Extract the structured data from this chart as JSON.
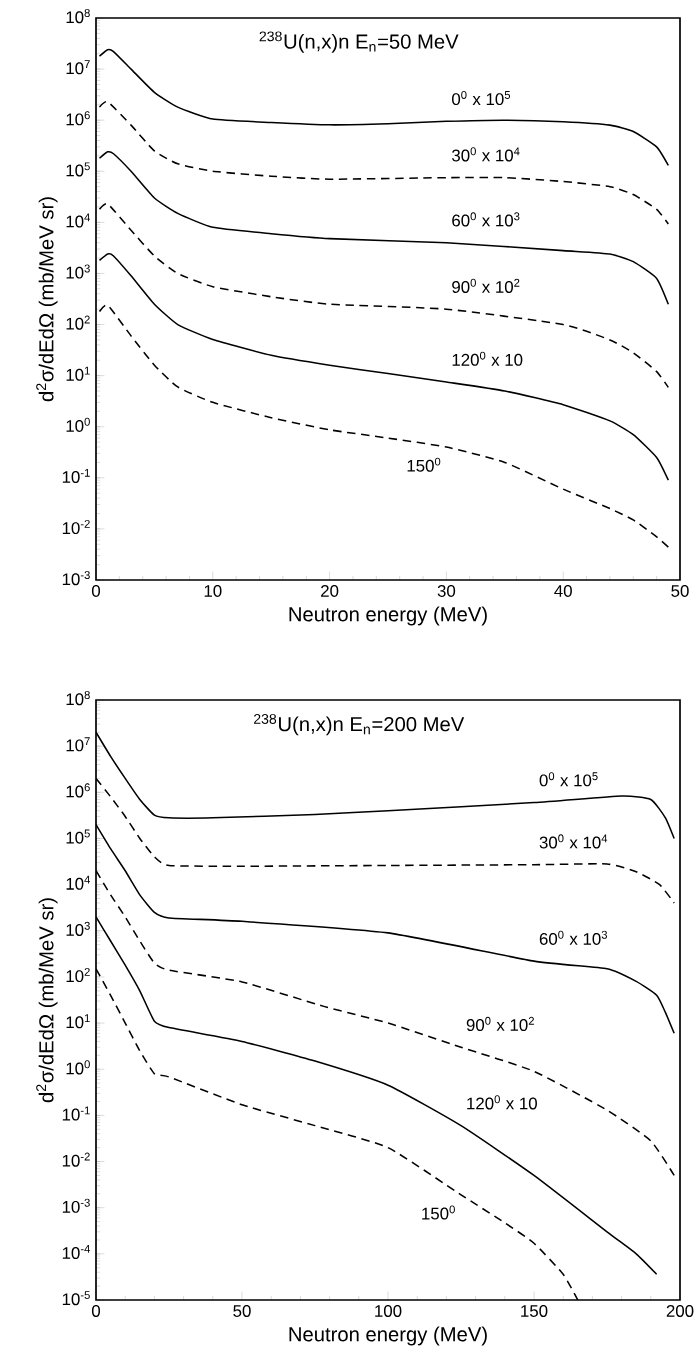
{
  "chart_data": [
    {
      "type": "line",
      "title": "$^{238}$U(n,x)n  E$_{n}$=50 MeV",
      "xlabel": "Neutron energy (MeV)",
      "ylabel": "d$^{2}$σ/dEdΩ (mb/MeV sr)",
      "log": "y",
      "xlim": [
        0,
        50
      ],
      "ylim": [
        0.001,
        100000000
      ],
      "xticks": [
        0,
        10,
        20,
        30,
        40,
        50
      ],
      "yticks": [
        {
          "value": 0.001,
          "label": "10$^{-3}$"
        },
        {
          "value": 0.01,
          "label": "10$^{-2}$"
        },
        {
          "value": 0.1,
          "label": "10$^{-1}$"
        },
        {
          "value": 1,
          "label": "10$^{0}$"
        },
        {
          "value": 10,
          "label": "10$^{1}$"
        },
        {
          "value": 100,
          "label": "10$^{2}$"
        },
        {
          "value": 1000,
          "label": "10$^{3}$"
        },
        {
          "value": 10000,
          "label": "10$^{4}$"
        },
        {
          "value": 100000,
          "label": "10$^{5}$"
        },
        {
          "value": 1000000,
          "label": "10$^{6}$"
        },
        {
          "value": 10000000,
          "label": "10$^{7}$"
        },
        {
          "value": 100000000,
          "label": "10$^{8}$"
        }
      ],
      "series": [
        {
          "name": "0$^{0}$  x 10$^{5}$",
          "color": "#000000",
          "line_style": "solid",
          "x": [
            0.3,
            1,
            1.5,
            3,
            5,
            7,
            10,
            15,
            20,
            25,
            30,
            35,
            40,
            44,
            46,
            48,
            49
          ],
          "values": [
            18000000,
            24000000,
            22000000,
            10000000,
            3500000,
            1800000,
            1050000,
            900000,
            810000,
            850000,
            950000,
            1000000,
            930000,
            800000,
            600000,
            300000,
            130000
          ]
        },
        {
          "name": "30$^{0}$  x 10$^{4}$",
          "color": "#000000",
          "line_style": "dashed",
          "x": [
            0.3,
            1,
            3,
            5,
            7,
            10,
            15,
            20,
            30,
            35,
            40,
            44,
            46,
            48,
            49
          ],
          "values": [
            1800000,
            2300000,
            800000,
            250000,
            140000,
            100000,
            80000,
            70000,
            75000,
            75000,
            63000,
            50000,
            35000,
            18000,
            9300
          ]
        },
        {
          "name": "60$^{0}$  x 10$^{3}$",
          "color": "#000000",
          "line_style": "solid",
          "x": [
            0.3,
            1,
            1.5,
            3,
            5,
            7,
            10,
            15,
            20,
            30,
            40,
            44,
            46,
            48,
            49
          ],
          "values": [
            180000,
            240000,
            220000,
            100000,
            30000,
            15000,
            8000,
            6000,
            4800,
            4000,
            2800,
            2400,
            1700,
            800,
            250
          ]
        },
        {
          "name": "90$^{0}$  x 10$^{2}$",
          "color": "#000000",
          "line_style": "dashed",
          "x": [
            0.3,
            1,
            3,
            5,
            7,
            10,
            15,
            20,
            30,
            40,
            44,
            46,
            48,
            49
          ],
          "values": [
            18000,
            23000,
            7000,
            2200,
            1000,
            550,
            350,
            250,
            200,
            100,
            50,
            28,
            12,
            5.9
          ]
        },
        {
          "name": "120$^{0}$  x 10",
          "color": "#000000",
          "line_style": "solid",
          "x": [
            0.3,
            1,
            1.5,
            3,
            5,
            7,
            10,
            15,
            20,
            25,
            30,
            35,
            40,
            44,
            46,
            48,
            49
          ],
          "values": [
            1800,
            2400,
            2200,
            900,
            250,
            100,
            51,
            25,
            16,
            11,
            7.5,
            5,
            2.7,
            1.3,
            0.7,
            0.25,
            0.09
          ]
        },
        {
          "name": "150$^{0}$",
          "color": "#000000",
          "line_style": "dashed",
          "x": [
            0.3,
            1,
            3,
            5,
            7,
            10,
            15,
            20,
            25,
            30,
            35,
            40,
            44,
            46,
            48,
            49
          ],
          "values": [
            180,
            240,
            60,
            16,
            6,
            3,
            1.5,
            0.87,
            0.6,
            0.4,
            0.2,
            0.06,
            0.025,
            0.015,
            0.007,
            0.0044
          ]
        }
      ]
    },
    {
      "type": "line",
      "title": "$^{238}$U(n,x)n     E$_{n}$=200 MeV",
      "xlabel": "Neutron energy (MeV)",
      "ylabel": "d$^{2}$σ/dEdΩ (mb/MeV sr)",
      "log": "y",
      "xlim": [
        0,
        200
      ],
      "ylim": [
        1e-05,
        100000000
      ],
      "xticks": [
        0,
        50,
        100,
        150,
        200
      ],
      "yticks": [
        {
          "value": 1e-05,
          "label": "10$^{-5}$"
        },
        {
          "value": 0.0001,
          "label": "10$^{-4}$"
        },
        {
          "value": 0.001,
          "label": "10$^{-3}$"
        },
        {
          "value": 0.01,
          "label": "10$^{-2}$"
        },
        {
          "value": 0.1,
          "label": "10$^{-1}$"
        },
        {
          "value": 1,
          "label": "10$^{0}$"
        },
        {
          "value": 10,
          "label": "10$^{1}$"
        },
        {
          "value": 100,
          "label": "10$^{2}$"
        },
        {
          "value": 1000,
          "label": "10$^{3}$"
        },
        {
          "value": 10000,
          "label": "10$^{4}$"
        },
        {
          "value": 100000,
          "label": "10$^{5}$"
        },
        {
          "value": 1000000,
          "label": "10$^{6}$"
        },
        {
          "value": 10000000,
          "label": "10$^{7}$"
        },
        {
          "value": 100000000,
          "label": "10$^{8}$"
        }
      ],
      "series": [
        {
          "name": "0$^{0}$  x 10$^{5}$",
          "color": "#000000",
          "line_style": "solid",
          "x": [
            0,
            5,
            10,
            15,
            20,
            25,
            40,
            75,
            100,
            150,
            180,
            190,
            195,
            198
          ],
          "values": [
            20000000,
            6000000,
            2000000,
            700000,
            320000,
            280000,
            280000,
            330000,
            400000,
            600000,
            830000,
            700000,
            280000,
            100000
          ]
        },
        {
          "name": "30$^{0}$  x 10$^{4}$",
          "color": "#000000",
          "line_style": "dashed",
          "x": [
            0,
            5,
            10,
            15,
            20,
            25,
            50,
            100,
            150,
            175,
            185,
            193,
            198
          ],
          "values": [
            2000000,
            800000,
            300000,
            100000,
            40000,
            26000,
            25000,
            26000,
            27000,
            28000,
            19000,
            10000,
            4000
          ]
        },
        {
          "name": "60$^{0}$  x 10$^{3}$",
          "color": "#000000",
          "line_style": "solid",
          "x": [
            0,
            5,
            10,
            15,
            20,
            25,
            50,
            100,
            150,
            175,
            185,
            192,
            195,
            198
          ],
          "values": [
            200000,
            60000,
            20000,
            6000,
            2500,
            1900,
            1600,
            900,
            220,
            150,
            80,
            40,
            17,
            6
          ]
        },
        {
          "name": "90$^{0}$  x 10$^{2}$",
          "color": "#000000",
          "line_style": "dashed",
          "x": [
            0,
            5,
            10,
            15,
            20,
            25,
            50,
            78,
            100,
            125,
            150,
            175,
            190,
            198
          ],
          "values": [
            20000,
            6000,
            2000,
            600,
            200,
            140,
            78,
            23,
            10,
            3,
            0.9,
            0.13,
            0.028,
            0.005
          ]
        },
        {
          "name": "120$^{0}$  x 10",
          "color": "#000000",
          "line_style": "solid",
          "x": [
            0,
            5,
            10,
            15,
            20,
            25,
            50,
            75,
            100,
            125,
            150,
            175,
            185,
            192
          ],
          "values": [
            2000,
            600,
            180,
            50,
            11,
            8,
            4,
            1.5,
            0.45,
            0.06,
            0.005,
            0.0003,
            0.0001,
            3.6e-05
          ]
        },
        {
          "name": "150$^{0}$",
          "color": "#000000",
          "line_style": "dashed",
          "x": [
            0,
            5,
            10,
            15,
            20,
            25,
            50,
            75,
            100,
            125,
            140,
            150,
            160,
            165
          ],
          "values": [
            150,
            40,
            10,
            2.5,
            0.8,
            0.68,
            0.17,
            0.06,
            0.02,
            0.0019,
            0.00047,
            0.00017,
            3.6e-05,
            1e-05
          ]
        }
      ]
    }
  ]
}
